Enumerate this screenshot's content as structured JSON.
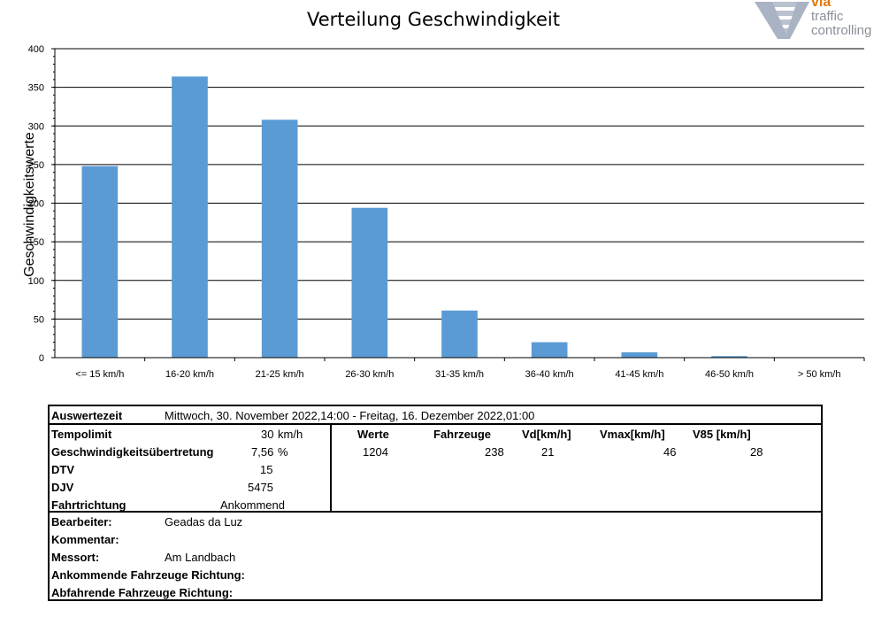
{
  "chart_data": {
    "type": "bar",
    "title": "Verteilung Geschwindigkeit",
    "ylabel": "Geschwindigkeitswerte",
    "xlabel": "",
    "categories": [
      "<= 15 km/h",
      "16-20 km/h",
      "21-25 km/h",
      "26-30 km/h",
      "31-35 km/h",
      "36-40 km/h",
      "41-45 km/h",
      "46-50 km/h",
      "> 50 km/h"
    ],
    "values": [
      248,
      364,
      308,
      194,
      61,
      20,
      7,
      2,
      0
    ],
    "ylim": [
      0,
      400
    ],
    "yticks": [
      "0",
      "50",
      "100",
      "150",
      "200",
      "250",
      "300",
      "350",
      "400"
    ],
    "grid": true,
    "bar_color": "#5b9bd5"
  },
  "logo": {
    "line1": "via",
    "line2": "traffic",
    "line3": "controlling",
    "accent": "#e07a12"
  },
  "info": {
    "auswertezeit_label": "Auswertezeit",
    "auswertezeit_value": "Mittwoch, 30. November 2022,14:00  -  Freitag, 16. Dezember 2022,01:00",
    "tempolimit_label": "Tempolimit",
    "tempolimit_value": "30",
    "tempolimit_unit": "km/h",
    "ueber_label": "Geschwindigkeitsübertretung",
    "ueber_value": "7,56",
    "ueber_unit": "%",
    "dtv_label": "DTV",
    "dtv_value": "15",
    "djv_label": "DJV",
    "djv_value": "5475",
    "fahrtrichtung_label": "Fahrtrichtung",
    "fahrtrichtung_value": "Ankommend",
    "stats_headers": [
      "Werte",
      "Fahrzeuge",
      "Vd[km/h]",
      "Vmax[km/h]",
      "V85 [km/h]"
    ],
    "stats_values": [
      "1204",
      "238",
      "21",
      "46",
      "28"
    ],
    "bearbeiter_label": "Bearbeiter:",
    "bearbeiter_value": "Geadas da Luz",
    "kommentar_label": "Kommentar:",
    "messort_label": "Messort:",
    "messort_value": "Am Landbach",
    "ankommend_label": "Ankommende Fahrzeuge Richtung:",
    "abfahrend_label": "Abfahrende Fahrzeuge Richtung:"
  }
}
